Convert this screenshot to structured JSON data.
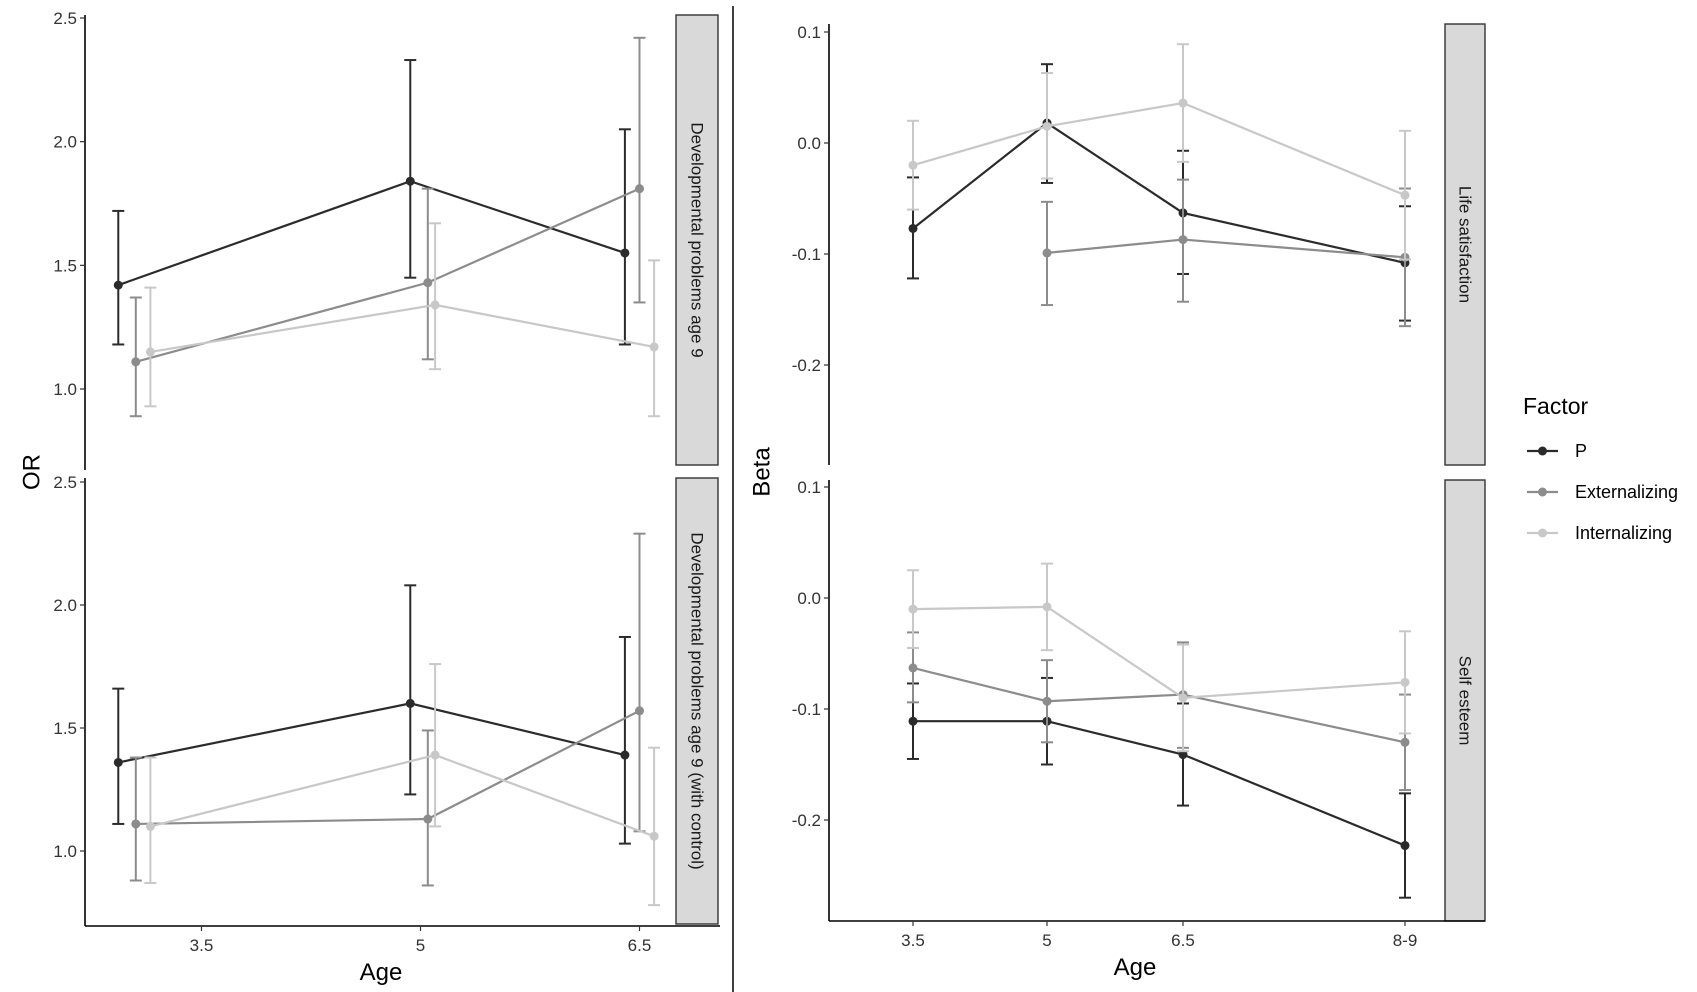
{
  "colors": {
    "P": "#2b2b2b",
    "Externalizing": "#8c8c8c",
    "Internalizing": "#c8c8c8",
    "strip_fill": "#d9d9d9",
    "strip_border": "#333333"
  },
  "legend": {
    "title": "Factor",
    "items": [
      "P",
      "Externalizing",
      "Internalizing"
    ],
    "placement": "right"
  },
  "chart_data": [
    {
      "type": "line",
      "panel": "left",
      "xlabel": "Age",
      "ylabel": "OR",
      "x_ticks": [
        "3.5",
        "5",
        "6.5"
      ],
      "y_ticks": [
        "1.0",
        "1.5",
        "2.0",
        "2.5"
      ],
      "ylim": [
        0.76,
        2.5
      ],
      "grid": false,
      "facets": [
        {
          "strip": "Developmental problems age 9",
          "series": [
            {
              "name": "P",
              "points": [
                {
                  "x": 2.93,
                  "y": 1.42,
                  "lo": 1.18,
                  "hi": 1.72
                },
                {
                  "x": 4.93,
                  "y": 1.84,
                  "lo": 1.45,
                  "hi": 2.33
                },
                {
                  "x": 6.4,
                  "y": 1.55,
                  "lo": 1.18,
                  "hi": 2.05
                }
              ]
            },
            {
              "name": "Externalizing",
              "points": [
                {
                  "x": 3.05,
                  "y": 1.11,
                  "lo": 0.89,
                  "hi": 1.37
                },
                {
                  "x": 5.05,
                  "y": 1.43,
                  "lo": 1.12,
                  "hi": 1.81
                },
                {
                  "x": 6.5,
                  "y": 1.81,
                  "lo": 1.35,
                  "hi": 2.42
                }
              ]
            },
            {
              "name": "Internalizing",
              "points": [
                {
                  "x": 3.15,
                  "y": 1.15,
                  "lo": 0.93,
                  "hi": 1.41
                },
                {
                  "x": 5.1,
                  "y": 1.34,
                  "lo": 1.08,
                  "hi": 1.67
                },
                {
                  "x": 6.6,
                  "y": 1.17,
                  "lo": 0.89,
                  "hi": 1.52
                }
              ]
            }
          ]
        },
        {
          "strip": "Developmental problems age 9 (with control)",
          "series": [
            {
              "name": "P",
              "points": [
                {
                  "x": 2.93,
                  "y": 1.36,
                  "lo": 1.11,
                  "hi": 1.66
                },
                {
                  "x": 4.93,
                  "y": 1.6,
                  "lo": 1.23,
                  "hi": 2.08
                },
                {
                  "x": 6.4,
                  "y": 1.39,
                  "lo": 1.03,
                  "hi": 1.87
                }
              ]
            },
            {
              "name": "Externalizing",
              "points": [
                {
                  "x": 3.05,
                  "y": 1.11,
                  "lo": 0.88,
                  "hi": 1.38
                },
                {
                  "x": 5.05,
                  "y": 1.13,
                  "lo": 0.86,
                  "hi": 1.49
                },
                {
                  "x": 6.5,
                  "y": 1.57,
                  "lo": 1.08,
                  "hi": 2.29
                }
              ]
            },
            {
              "name": "Internalizing",
              "points": [
                {
                  "x": 3.15,
                  "y": 1.1,
                  "lo": 0.87,
                  "hi": 1.38
                },
                {
                  "x": 5.1,
                  "y": 1.39,
                  "lo": 1.1,
                  "hi": 1.76
                },
                {
                  "x": 6.6,
                  "y": 1.06,
                  "lo": 0.78,
                  "hi": 1.42
                }
              ]
            }
          ]
        }
      ]
    },
    {
      "type": "line",
      "panel": "right",
      "xlabel": "Age",
      "ylabel": "Beta",
      "x_ticks": [
        "3.5",
        "5",
        "6.5",
        "8-9"
      ],
      "y_ticks": [
        "-0.2",
        "-0.1",
        "0.0",
        "0.1"
      ],
      "ylim": [
        -0.285,
        0.105
      ],
      "grid": false,
      "facets": [
        {
          "strip": "Life satisfaction",
          "series": [
            {
              "name": "P",
              "points": [
                {
                  "x": 1,
                  "y": -0.077,
                  "lo": -0.122,
                  "hi": -0.031
                },
                {
                  "x": 2,
                  "y": 0.018,
                  "lo": -0.036,
                  "hi": 0.071
                },
                {
                  "x": 3,
                  "y": -0.063,
                  "lo": -0.118,
                  "hi": -0.007
                },
                {
                  "x": 4,
                  "y": -0.108,
                  "lo": -0.16,
                  "hi": -0.057
                }
              ]
            },
            {
              "name": "Externalizing",
              "points": [
                {
                  "x": 2,
                  "y": -0.099,
                  "lo": -0.146,
                  "hi": -0.053
                },
                {
                  "x": 3,
                  "y": -0.087,
                  "lo": -0.143,
                  "hi": -0.033
                },
                {
                  "x": 4,
                  "y": -0.103,
                  "lo": -0.165,
                  "hi": -0.041
                }
              ]
            },
            {
              "name": "Internalizing",
              "points": [
                {
                  "x": 1,
                  "y": -0.02,
                  "lo": -0.06,
                  "hi": 0.02
                },
                {
                  "x": 2,
                  "y": 0.015,
                  "lo": -0.032,
                  "hi": 0.063
                },
                {
                  "x": 3,
                  "y": 0.036,
                  "lo": -0.017,
                  "hi": 0.089
                },
                {
                  "x": 4,
                  "y": -0.047,
                  "lo": -0.105,
                  "hi": 0.011
                }
              ]
            }
          ]
        },
        {
          "strip": "Self esteem",
          "series": [
            {
              "name": "P",
              "points": [
                {
                  "x": 1,
                  "y": -0.111,
                  "lo": -0.145,
                  "hi": -0.077
                },
                {
                  "x": 2,
                  "y": -0.111,
                  "lo": -0.15,
                  "hi": -0.072
                },
                {
                  "x": 3,
                  "y": -0.141,
                  "lo": -0.187,
                  "hi": -0.095
                },
                {
                  "x": 4,
                  "y": -0.223,
                  "lo": -0.27,
                  "hi": -0.176
                }
              ]
            },
            {
              "name": "Externalizing",
              "points": [
                {
                  "x": 1,
                  "y": -0.063,
                  "lo": -0.094,
                  "hi": -0.031
                },
                {
                  "x": 2,
                  "y": -0.093,
                  "lo": -0.13,
                  "hi": -0.056
                },
                {
                  "x": 3,
                  "y": -0.087,
                  "lo": -0.135,
                  "hi": -0.04
                },
                {
                  "x": 4,
                  "y": -0.13,
                  "lo": -0.173,
                  "hi": -0.087
                }
              ]
            },
            {
              "name": "Internalizing",
              "points": [
                {
                  "x": 1,
                  "y": -0.01,
                  "lo": -0.045,
                  "hi": 0.025
                },
                {
                  "x": 2,
                  "y": -0.008,
                  "lo": -0.047,
                  "hi": 0.031
                },
                {
                  "x": 3,
                  "y": -0.09,
                  "lo": -0.138,
                  "hi": -0.042
                },
                {
                  "x": 4,
                  "y": -0.076,
                  "lo": -0.122,
                  "hi": -0.03
                }
              ]
            }
          ]
        }
      ]
    }
  ]
}
